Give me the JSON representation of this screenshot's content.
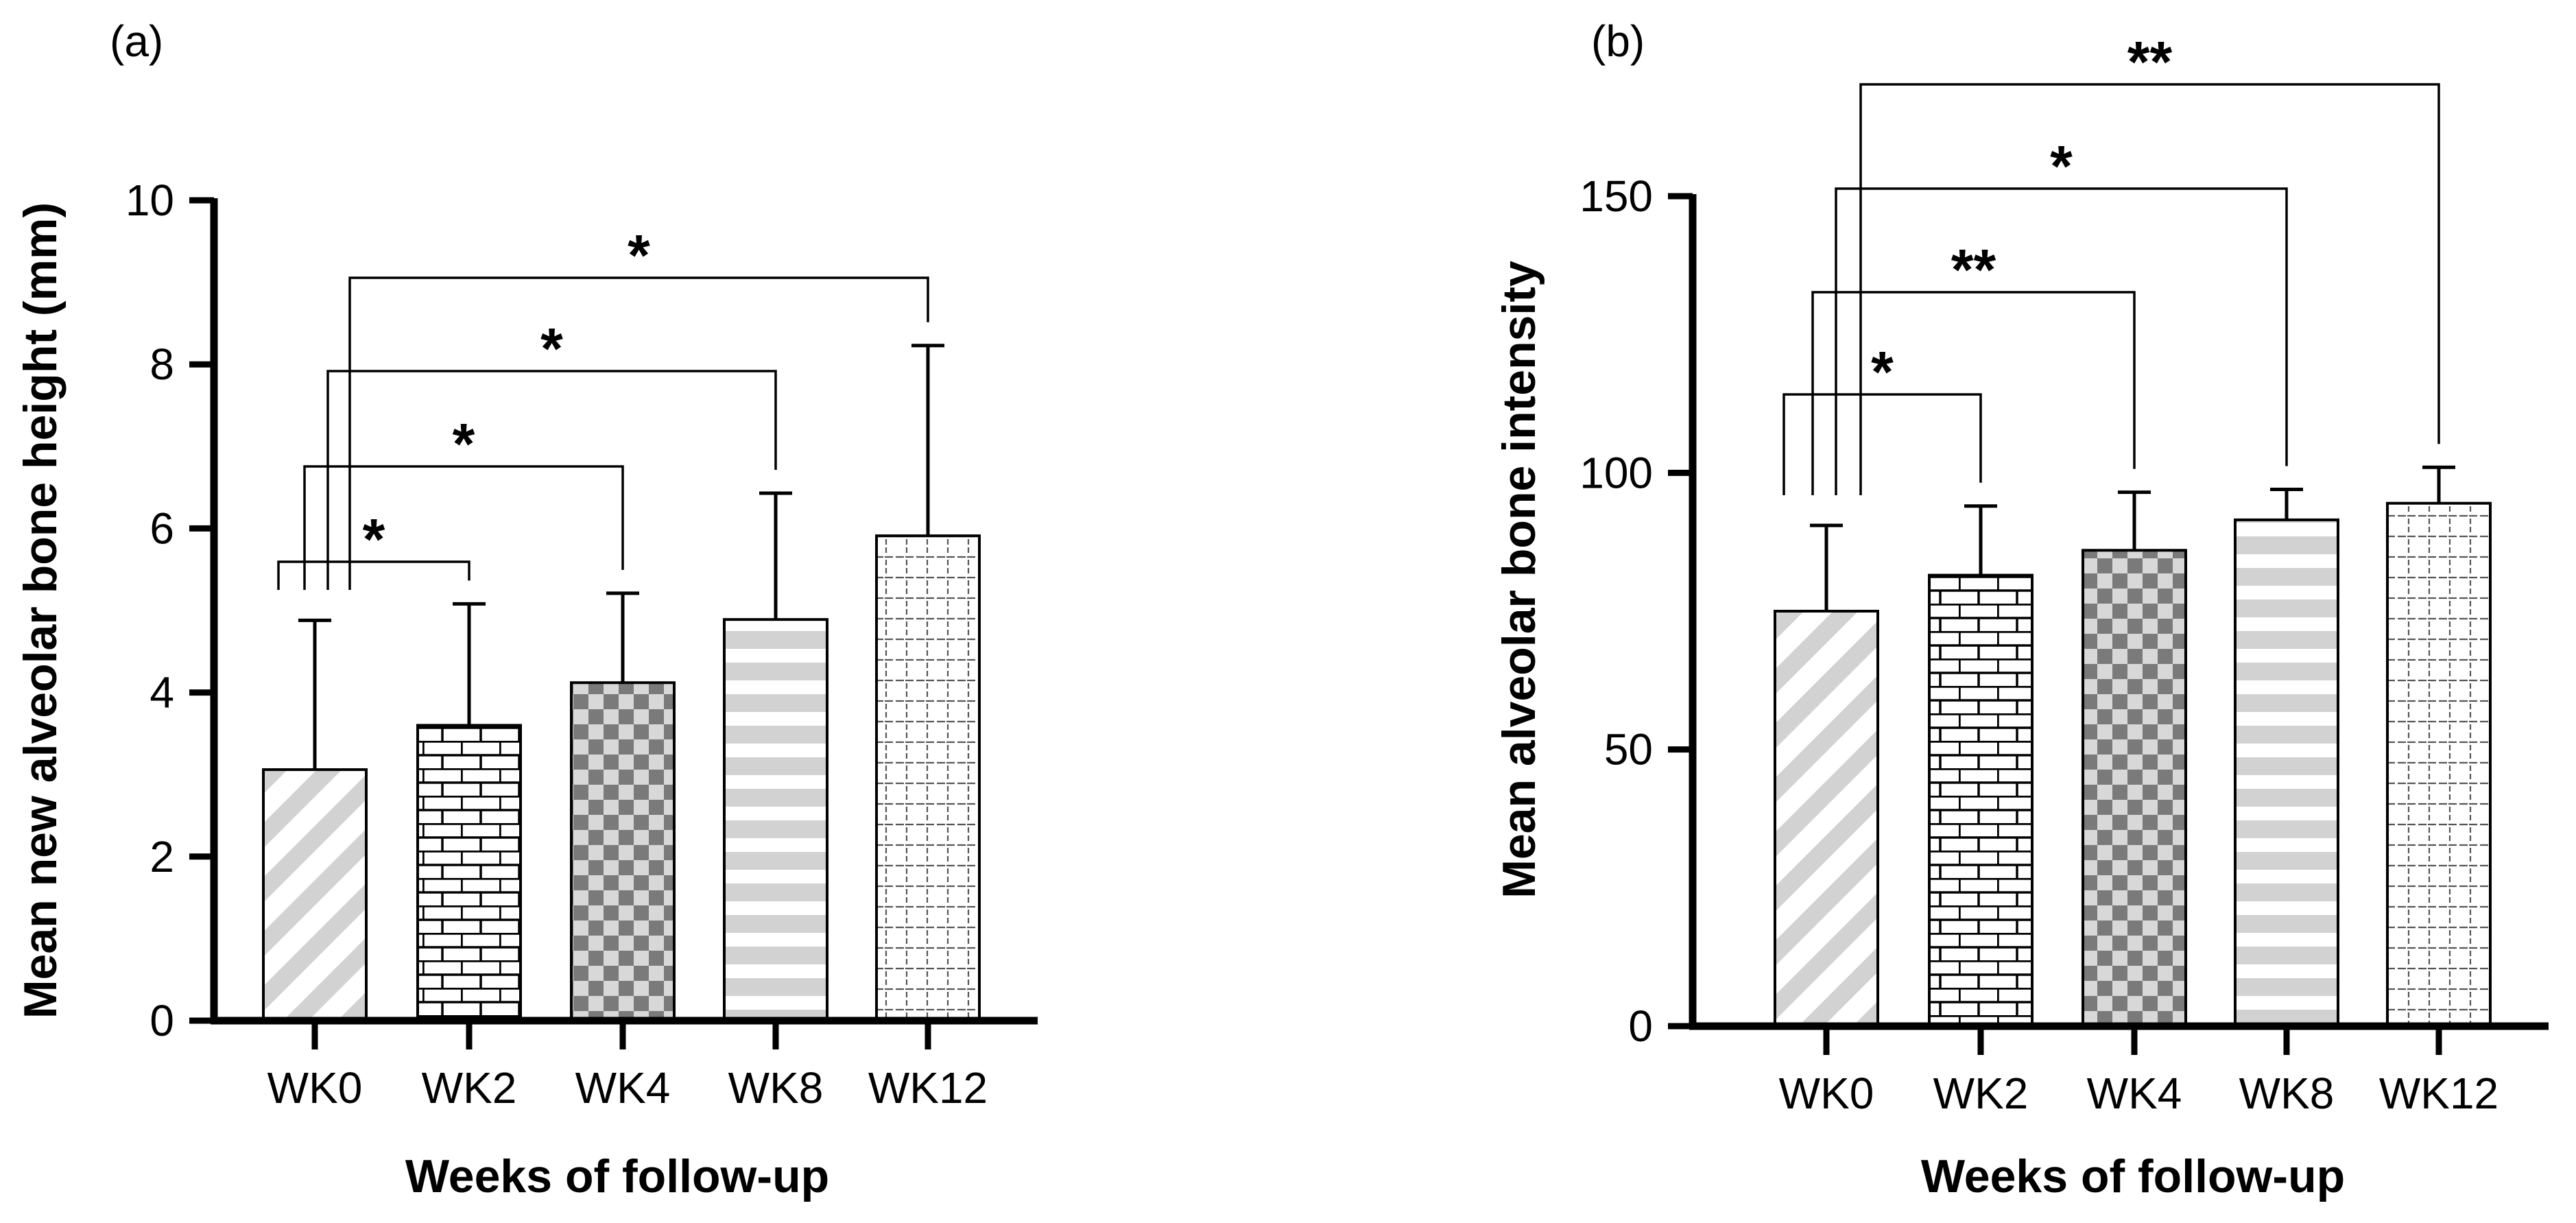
{
  "chart_data": [
    {
      "type": "bar",
      "panel_label": "(a)",
      "categories": [
        "WK0",
        "WK2",
        "WK4",
        "WK8",
        "WK12"
      ],
      "values": [
        3.06,
        3.6,
        4.12,
        4.89,
        5.91
      ],
      "error": [
        1.82,
        1.48,
        1.09,
        1.54,
        2.32
      ],
      "patterns": [
        "diagonal",
        "brick",
        "checker",
        "hstripe",
        "dashgrid"
      ],
      "xlabel": "Weeks of follow-up",
      "ylabel": "Mean new alveolar bone height (mm)",
      "ylim": [
        0,
        10
      ],
      "yticks": [
        0,
        2,
        4,
        6,
        8,
        10
      ],
      "grid": false,
      "significance": [
        {
          "from": "WK0",
          "to": "WK2",
          "label": "*"
        },
        {
          "from": "WK0",
          "to": "WK4",
          "label": "*"
        },
        {
          "from": "WK0",
          "to": "WK8",
          "label": "*"
        },
        {
          "from": "WK0",
          "to": "WK12",
          "label": "*"
        }
      ]
    },
    {
      "type": "bar",
      "panel_label": "(b)",
      "categories": [
        "WK0",
        "WK2",
        "WK4",
        "WK8",
        "WK12"
      ],
      "values": [
        75,
        81.5,
        86,
        91.5,
        94.5
      ],
      "error": [
        15.5,
        12.5,
        10.5,
        5.5,
        6.5
      ],
      "patterns": [
        "diagonal",
        "brick",
        "checker",
        "hstripe",
        "dashgrid"
      ],
      "xlabel": "Weeks of follow-up",
      "ylabel": "Mean alveolar bone intensity",
      "ylim": [
        0,
        150
      ],
      "yticks": [
        0,
        50,
        100,
        150
      ],
      "grid": false,
      "significance": [
        {
          "from": "WK0",
          "to": "WK2",
          "label": "*"
        },
        {
          "from": "WK0",
          "to": "WK4",
          "label": "**"
        },
        {
          "from": "WK0",
          "to": "WK8",
          "label": "*"
        },
        {
          "from": "WK0",
          "to": "WK12",
          "label": "**"
        }
      ]
    }
  ]
}
